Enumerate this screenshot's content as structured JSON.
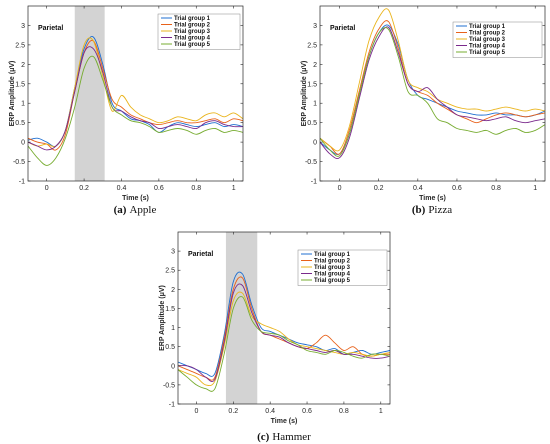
{
  "chart_data": [
    {
      "id": "apple",
      "type": "line",
      "caption_letter": "(a)",
      "caption_text": "Apple",
      "region_label": "Parietal",
      "xlabel": "Time (s)",
      "ylabel": "ERP Amplitude (μV)",
      "xlim": [
        -0.1,
        1.05
      ],
      "ylim": [
        -1,
        3.5
      ],
      "xticks": [
        "0",
        "0.2",
        "0.4",
        "0.6",
        "0.8",
        "1"
      ],
      "xtick_values": [
        0,
        0.2,
        0.4,
        0.6,
        0.8,
        1
      ],
      "yticks": [
        "-1",
        "-0.5",
        "0",
        "0.5",
        "1",
        "1.5",
        "2",
        "2.5",
        "3"
      ],
      "ytick_values": [
        -1,
        -0.5,
        0,
        0.5,
        1,
        1.5,
        2,
        2.5,
        3
      ],
      "shaded_range": [
        0.15,
        0.31
      ],
      "legend_position": "top-right",
      "x": [
        -0.1,
        -0.05,
        0,
        0.05,
        0.1,
        0.15,
        0.2,
        0.25,
        0.3,
        0.35,
        0.4,
        0.45,
        0.5,
        0.55,
        0.6,
        0.65,
        0.7,
        0.75,
        0.8,
        0.85,
        0.9,
        0.95,
        1.0,
        1.05
      ],
      "series": [
        {
          "name": "Trial group 1",
          "color": "#1f6fd1",
          "values": [
            0.05,
            0.1,
            0.0,
            -0.1,
            0.3,
            1.4,
            2.4,
            2.7,
            2.0,
            1.0,
            0.8,
            0.6,
            0.55,
            0.45,
            0.25,
            0.4,
            0.5,
            0.45,
            0.4,
            0.45,
            0.5,
            0.4,
            0.45,
            0.4
          ]
        },
        {
          "name": "Trial group 2",
          "color": "#e8611a",
          "values": [
            0.1,
            0.0,
            -0.05,
            -0.2,
            0.2,
            1.3,
            2.3,
            2.6,
            1.9,
            1.1,
            0.9,
            0.7,
            0.6,
            0.5,
            0.45,
            0.5,
            0.55,
            0.5,
            0.5,
            0.55,
            0.6,
            0.5,
            0.6,
            0.55
          ]
        },
        {
          "name": "Trial group 3",
          "color": "#eab41c",
          "values": [
            0.0,
            -0.1,
            -0.05,
            -0.1,
            0.3,
            1.4,
            2.5,
            2.6,
            1.7,
            0.8,
            1.2,
            0.9,
            0.7,
            0.6,
            0.5,
            0.55,
            0.65,
            0.6,
            0.55,
            0.7,
            0.75,
            0.65,
            0.75,
            0.6
          ]
        },
        {
          "name": "Trial group 4",
          "color": "#7a2a8c",
          "values": [
            0.0,
            -0.1,
            -0.2,
            -0.1,
            0.3,
            1.3,
            2.3,
            2.4,
            1.8,
            0.9,
            0.8,
            0.65,
            0.55,
            0.5,
            0.35,
            0.4,
            0.45,
            0.4,
            0.35,
            0.5,
            0.55,
            0.45,
            0.4,
            0.4
          ]
        },
        {
          "name": "Trial group 5",
          "color": "#77ac30",
          "values": [
            -0.1,
            -0.4,
            -0.6,
            -0.4,
            0.1,
            0.9,
            1.9,
            2.2,
            1.6,
            0.9,
            0.7,
            0.55,
            0.5,
            0.4,
            0.25,
            0.3,
            0.35,
            0.3,
            0.2,
            0.3,
            0.35,
            0.25,
            0.3,
            0.25
          ]
        }
      ]
    },
    {
      "id": "pizza",
      "type": "line",
      "caption_letter": "(b)",
      "caption_text": "Pizza",
      "region_label": "Parietal",
      "xlabel": "Time (s)",
      "ylabel": "ERP Amplitude (μV)",
      "xlim": [
        -0.1,
        1.05
      ],
      "ylim": [
        -1,
        3.5
      ],
      "xticks": [
        "0",
        "0.2",
        "0.4",
        "0.6",
        "0.8",
        "1"
      ],
      "xtick_values": [
        0,
        0.2,
        0.4,
        0.6,
        0.8,
        1
      ],
      "yticks": [
        "-1",
        "-0.5",
        "0",
        "0.5",
        "1",
        "1.5",
        "2",
        "2.5",
        "3"
      ],
      "ytick_values": [
        -1,
        -0.5,
        0,
        0.5,
        1,
        1.5,
        2,
        2.5,
        3
      ],
      "shaded_range": null,
      "legend_position": "top-right",
      "x": [
        -0.1,
        -0.05,
        0,
        0.05,
        0.1,
        0.15,
        0.2,
        0.25,
        0.3,
        0.35,
        0.4,
        0.45,
        0.5,
        0.55,
        0.6,
        0.65,
        0.7,
        0.75,
        0.8,
        0.85,
        0.9,
        0.95,
        1.0,
        1.05
      ],
      "series": [
        {
          "name": "Trial group 1",
          "color": "#1f6fd1",
          "values": [
            0.0,
            -0.2,
            -0.3,
            0.2,
            1.2,
            2.2,
            2.8,
            3.0,
            2.5,
            1.6,
            1.2,
            1.1,
            1.0,
            0.9,
            0.8,
            0.75,
            0.7,
            0.7,
            0.75,
            0.7,
            0.7,
            0.65,
            0.7,
            0.8
          ]
        },
        {
          "name": "Trial group 2",
          "color": "#e8611a",
          "values": [
            0.1,
            -0.1,
            -0.3,
            0.3,
            1.3,
            2.3,
            2.9,
            3.1,
            2.4,
            1.5,
            1.3,
            1.2,
            1.0,
            0.85,
            0.7,
            0.6,
            0.5,
            0.6,
            0.7,
            0.75,
            0.7,
            0.65,
            0.7,
            0.75
          ]
        },
        {
          "name": "Trial group 3",
          "color": "#eab41c",
          "values": [
            0.1,
            -0.1,
            -0.2,
            0.4,
            1.5,
            2.6,
            3.2,
            3.4,
            2.6,
            1.6,
            1.4,
            1.3,
            1.1,
            1.0,
            0.9,
            0.85,
            0.85,
            0.8,
            0.85,
            0.9,
            0.85,
            0.8,
            0.85,
            0.8
          ]
        },
        {
          "name": "Trial group 4",
          "color": "#7a2a8c",
          "values": [
            0.0,
            -0.3,
            -0.4,
            0.1,
            1.1,
            2.1,
            2.7,
            2.95,
            2.3,
            1.5,
            1.3,
            1.4,
            1.1,
            0.9,
            0.7,
            0.65,
            0.6,
            0.55,
            0.6,
            0.65,
            0.55,
            0.5,
            0.55,
            0.6
          ]
        },
        {
          "name": "Trial group 5",
          "color": "#77ac30",
          "values": [
            0.1,
            -0.2,
            -0.35,
            0.2,
            1.2,
            2.2,
            2.8,
            2.9,
            2.2,
            1.3,
            1.2,
            1.0,
            0.6,
            0.5,
            0.35,
            0.3,
            0.25,
            0.3,
            0.2,
            0.3,
            0.35,
            0.25,
            0.3,
            0.45
          ]
        }
      ]
    },
    {
      "id": "hammer",
      "type": "line",
      "caption_letter": "(c)",
      "caption_text": "Hammer",
      "region_label": "Parietal",
      "xlabel": "Time (s)",
      "ylabel": "ERP Amplitude (μV)",
      "xlim": [
        -0.1,
        1.05
      ],
      "ylim": [
        -1,
        3.5
      ],
      "xticks": [
        "0",
        "0.2",
        "0.4",
        "0.6",
        "0.8",
        "1"
      ],
      "xtick_values": [
        0,
        0.2,
        0.4,
        0.6,
        0.8,
        1
      ],
      "yticks": [
        "-1",
        "-0.5",
        "0",
        "0.5",
        "1",
        "1.5",
        "2",
        "2.5",
        "3"
      ],
      "ytick_values": [
        -1,
        -0.5,
        0,
        0.5,
        1,
        1.5,
        2,
        2.5,
        3
      ],
      "shaded_range": [
        0.16,
        0.33
      ],
      "legend_position": "top-right",
      "x": [
        -0.1,
        -0.05,
        0,
        0.05,
        0.1,
        0.15,
        0.2,
        0.25,
        0.3,
        0.35,
        0.4,
        0.45,
        0.5,
        0.55,
        0.6,
        0.65,
        0.7,
        0.75,
        0.8,
        0.85,
        0.9,
        0.95,
        1.0,
        1.05
      ],
      "series": [
        {
          "name": "Trial group 1",
          "color": "#1f6fd1",
          "values": [
            0.1,
            0.0,
            -0.1,
            -0.2,
            -0.2,
            0.8,
            2.2,
            2.4,
            1.6,
            1.0,
            0.9,
            0.8,
            0.7,
            0.6,
            0.55,
            0.5,
            0.4,
            0.45,
            0.3,
            0.35,
            0.4,
            0.3,
            0.35,
            0.4
          ]
        },
        {
          "name": "Trial group 2",
          "color": "#e8611a",
          "values": [
            0.0,
            -0.1,
            -0.2,
            -0.3,
            -0.3,
            0.7,
            2.0,
            2.3,
            1.5,
            0.9,
            0.8,
            0.7,
            0.6,
            0.5,
            0.45,
            0.6,
            0.8,
            0.6,
            0.4,
            0.5,
            0.3,
            0.25,
            0.3,
            0.3
          ]
        },
        {
          "name": "Trial group 3",
          "color": "#eab41c",
          "values": [
            -0.1,
            -0.2,
            -0.3,
            -0.5,
            -0.4,
            0.5,
            1.7,
            1.9,
            1.3,
            1.1,
            1.0,
            0.9,
            0.7,
            0.55,
            0.5,
            0.45,
            0.4,
            0.35,
            0.3,
            0.35,
            0.3,
            0.25,
            0.3,
            0.35
          ]
        },
        {
          "name": "Trial group 4",
          "color": "#7a2a8c",
          "values": [
            0.0,
            0.0,
            -0.1,
            -0.3,
            -0.35,
            0.6,
            1.9,
            2.1,
            1.4,
            0.9,
            0.8,
            0.75,
            0.6,
            0.5,
            0.45,
            0.4,
            0.35,
            0.4,
            0.3,
            0.3,
            0.25,
            0.2,
            0.2,
            0.25
          ]
        },
        {
          "name": "Trial group 5",
          "color": "#77ac30",
          "values": [
            -0.1,
            -0.3,
            -0.5,
            -0.6,
            -0.6,
            0.3,
            1.5,
            1.8,
            1.2,
            0.9,
            0.85,
            0.8,
            0.65,
            0.55,
            0.4,
            0.35,
            0.3,
            0.4,
            0.35,
            0.25,
            0.2,
            0.3,
            0.3,
            0.25
          ]
        }
      ]
    }
  ]
}
